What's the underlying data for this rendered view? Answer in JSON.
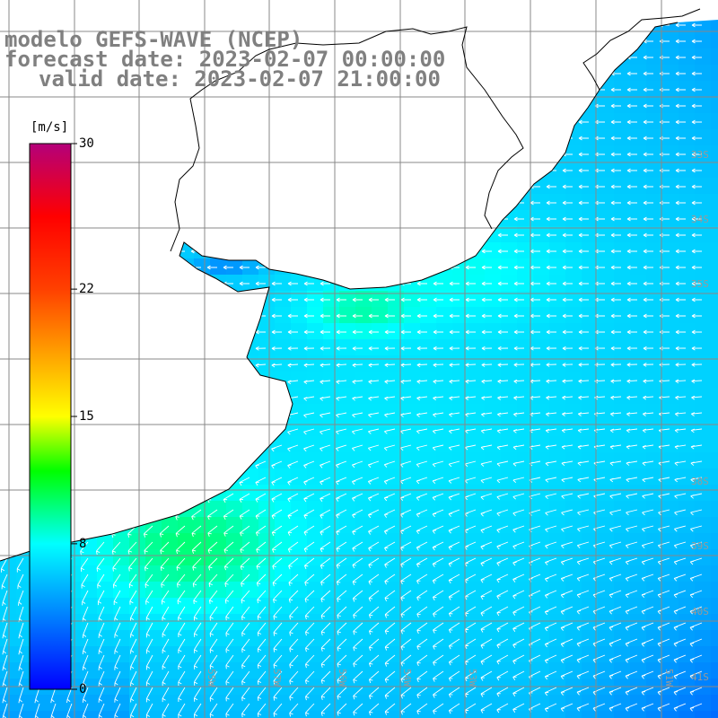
{
  "title": {
    "line1": "modelo GEFS-WAVE (NCEP)",
    "line2": "forecast date: 2023-02-07 00:00:00",
    "line3": "valid date: 2023-02-07 21:00:00"
  },
  "colorbar": {
    "unit": "[m/s]",
    "min": 0,
    "max": 30,
    "ticks": [
      {
        "value": 30,
        "label": "30"
      },
      {
        "value": 22,
        "label": "22"
      },
      {
        "value": 15,
        "label": "15"
      },
      {
        "value": 8,
        "label": "8"
      },
      {
        "value": 0,
        "label": "0"
      }
    ],
    "colors": [
      {
        "value": 0,
        "hex": "#0000ff"
      },
      {
        "value": 8,
        "hex": "#00ffff"
      },
      {
        "value": 12,
        "hex": "#00ff00"
      },
      {
        "value": 15,
        "hex": "#ffff00"
      },
      {
        "value": 22,
        "hex": "#ff4000"
      },
      {
        "value": 26,
        "hex": "#ff0000"
      },
      {
        "value": 30,
        "hex": "#b4007a"
      }
    ]
  },
  "grid_labels": {
    "latitude": [
      "33S",
      "34S",
      "35S",
      "38S",
      "39S",
      "40S",
      "41S"
    ],
    "longitude": [
      "55W",
      "57W",
      "56W",
      "54W",
      "53W",
      "51W"
    ]
  },
  "colors": {
    "land": "#ffffff",
    "coast": "#000000",
    "grid": "#888888",
    "arrow": "#ffffff",
    "title": "#808080"
  }
}
